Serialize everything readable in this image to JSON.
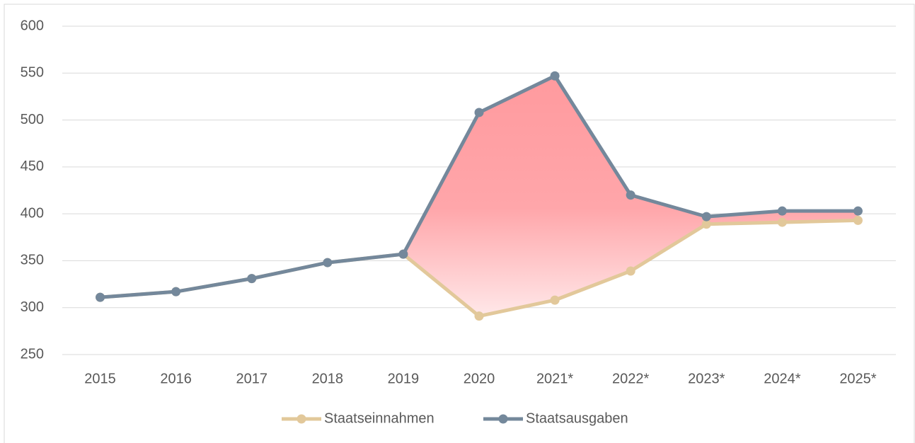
{
  "chart_data": {
    "type": "line",
    "categories": [
      "2015",
      "2016",
      "2017",
      "2018",
      "2019",
      "2020",
      "2021*",
      "2022*",
      "2023*",
      "2024*",
      "2025*"
    ],
    "series": [
      {
        "name": "Staatseinnahmen",
        "color": "#e2c89a",
        "values": [
          311,
          317,
          331,
          348,
          357,
          291,
          308,
          339,
          389,
          391,
          393
        ]
      },
      {
        "name": "Staatsausgaben",
        "color": "#74889b",
        "values": [
          311,
          317,
          331,
          348,
          357,
          508,
          547,
          420,
          397,
          403,
          403
        ]
      }
    ],
    "ylim": [
      250,
      600
    ],
    "yticks": [
      250,
      300,
      350,
      400,
      450,
      500,
      550,
      600
    ],
    "grid": true,
    "legend": "bottom"
  }
}
